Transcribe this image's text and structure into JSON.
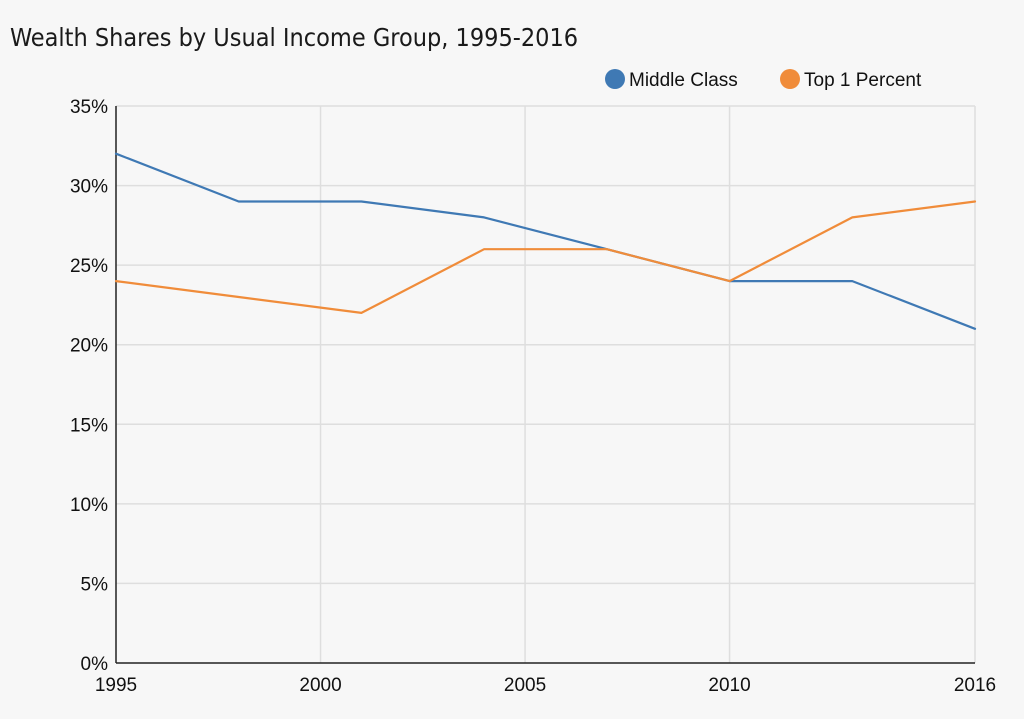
{
  "chart_data": {
    "type": "line",
    "title": "Wealth Shares by Usual Income Group, 1995-2016",
    "xlabel": "",
    "ylabel": "",
    "x": [
      1995,
      1998,
      2001,
      2004,
      2007,
      2010,
      2013,
      2016
    ],
    "series": [
      {
        "name": "Middle Class",
        "color": "#3f79b4",
        "values": [
          32,
          29,
          29,
          28,
          26,
          24,
          24,
          21
        ]
      },
      {
        "name": "Top 1 Percent",
        "color": "#f08c3a",
        "values": [
          24,
          23,
          22,
          26,
          26,
          24,
          28,
          29
        ]
      }
    ],
    "xlim": [
      1995,
      2016
    ],
    "ylim": [
      0,
      35
    ],
    "x_ticks": [
      1995,
      2000,
      2005,
      2010,
      2016
    ],
    "x_tick_labels": [
      "1995",
      "2000",
      "2005",
      "2010",
      "2016"
    ],
    "y_ticks": [
      0,
      5,
      10,
      15,
      20,
      25,
      30,
      35
    ],
    "y_tick_labels": [
      "0%",
      "5%",
      "10%",
      "15%",
      "20%",
      "25%",
      "30%",
      "35%"
    ],
    "grid": true,
    "legend_position": "top-right"
  }
}
